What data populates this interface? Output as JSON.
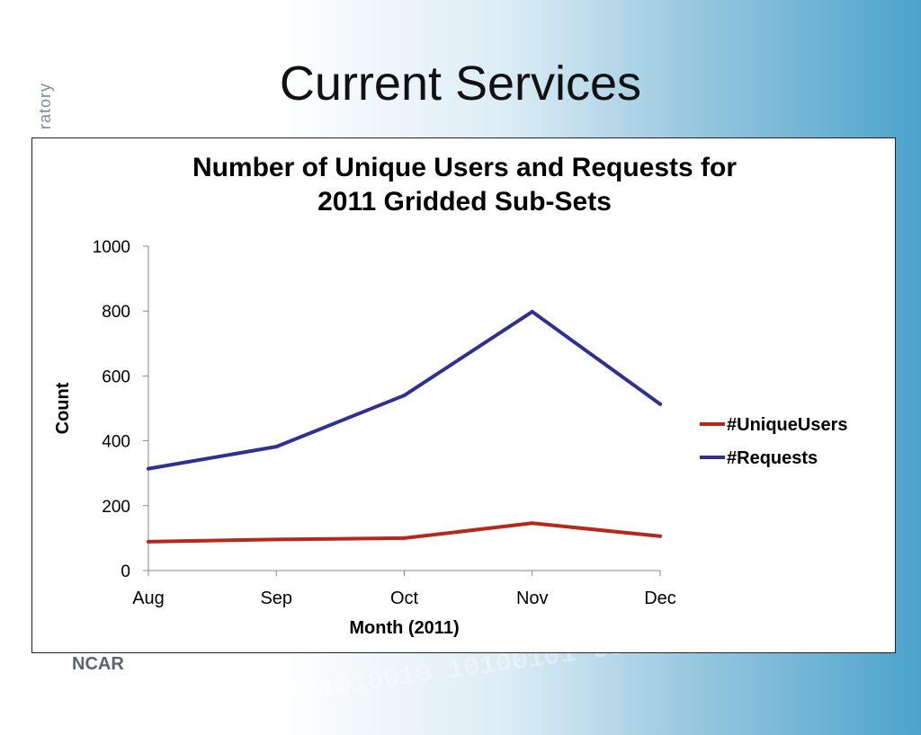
{
  "slide": {
    "title": "Current Services",
    "side_text": "ratory",
    "logo_text": "NCAR"
  },
  "chart_data": {
    "type": "line",
    "title": "Number of Unique Users and Requests for 2011 Gridded Sub-Sets",
    "title_lines": [
      "Number of Unique Users and Requests for",
      "2011 Gridded Sub-Sets"
    ],
    "xlabel": "Month (2011)",
    "ylabel": "Count",
    "categories": [
      "Aug",
      "Sep",
      "Oct",
      "Nov",
      "Dec"
    ],
    "ylim": [
      0,
      1000
    ],
    "yticks": [
      0,
      200,
      400,
      600,
      800,
      1000
    ],
    "grid": false,
    "legend": "right",
    "series": [
      {
        "name": "#UniqueUsers",
        "color": "#b5281c",
        "values": [
          89,
          96,
          100,
          146,
          106
        ]
      },
      {
        "name": "#Requests",
        "color": "#2e3192",
        "values": [
          314,
          382,
          540,
          798,
          513
        ]
      }
    ]
  }
}
